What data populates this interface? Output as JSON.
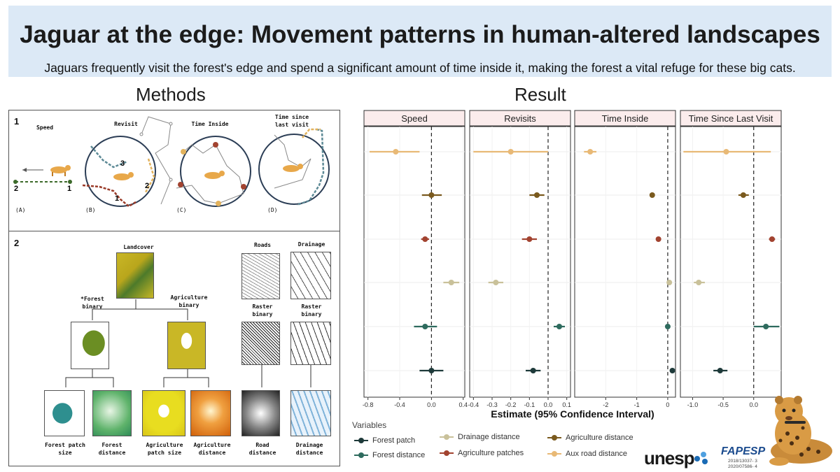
{
  "header": {
    "title": "Jaguar at the edge: Movement patterns in human-altered landscapes",
    "subtitle": "Jaguars frequently visit the forest's edge and spend a significant amount of time inside it, making the forest a vital refuge for these big cats."
  },
  "sections": {
    "methods": "Methods",
    "result": "Result"
  },
  "methods": {
    "panel1": {
      "number": "1",
      "speed": "Speed",
      "revisit": "Revisit",
      "time_inside": "Time Inside",
      "time_since_last_visit": "Time since last visit",
      "tag_a": "(A)",
      "tag_b": "(B)",
      "tag_c": "(C)",
      "tag_d": "(D)",
      "speed_end": "2",
      "speed_start": "1",
      "path_1": "1",
      "path_2": "2",
      "path_3": "3",
      "path_1b": "1"
    },
    "panel2": {
      "number": "2",
      "landcover": "Landcover",
      "roads": "Roads",
      "drainage": "Drainage",
      "forest_binary": "*Forest binary",
      "agriculture_binary": "Agriculture binary",
      "raster_binary_roads": "Raster binary",
      "raster_binary_drainage": "Raster binary",
      "forest_patch_size": "Forest patch size",
      "forest_distance": "Forest distance",
      "agriculture_patch_size": "Agriculture patch size",
      "agriculture_distance": "Agriculture distance",
      "road_distance": "Road distance",
      "drainage_distance": "Drainage distance"
    }
  },
  "chart_data": {
    "type": "scatter",
    "description_type": "forest plot (point estimates with 95% confidence intervals)",
    "xlabel": "Estimate (95% Confidence Interval)",
    "legend_title": "Variables",
    "legend_position": "bottom",
    "rows": [
      "Aux road distance",
      "Agriculture distance",
      "Agriculture patches",
      "Drainage distance",
      "Forest distance",
      "Forest patch"
    ],
    "series_colors": {
      "Forest patch": "#1e3a3a",
      "Forest distance": "#2e6b5e",
      "Drainage distance": "#c9c19a",
      "Agriculture patches": "#a24330",
      "Agriculture distance": "#7a5a1e",
      "Aux road distance": "#e8b976"
    },
    "panels": [
      {
        "title": "Speed",
        "xlim": [
          -0.85,
          0.42
        ],
        "ticks": [
          -0.8,
          -0.4,
          0.0,
          0.4
        ],
        "tick_labels": [
          "-0.8",
          "-0.4",
          "0.0",
          "0.4"
        ],
        "points": [
          {
            "var": "Aux road distance",
            "est": -0.45,
            "lo": -0.78,
            "hi": -0.15
          },
          {
            "var": "Agriculture distance",
            "est": 0.0,
            "lo": -0.12,
            "hi": 0.13
          },
          {
            "var": "Agriculture patches",
            "est": -0.08,
            "lo": -0.13,
            "hi": -0.03
          },
          {
            "var": "Drainage distance",
            "est": 0.25,
            "lo": 0.15,
            "hi": 0.35
          },
          {
            "var": "Forest distance",
            "est": -0.08,
            "lo": -0.22,
            "hi": 0.07
          },
          {
            "var": "Forest patch",
            "est": 0.0,
            "lo": -0.15,
            "hi": 0.15
          }
        ]
      },
      {
        "title": "Revisits",
        "xlim": [
          -0.42,
          0.12
        ],
        "ticks": [
          -0.4,
          -0.3,
          -0.2,
          -0.1,
          0.0,
          0.1
        ],
        "tick_labels": [
          "-0.4",
          "-0.3",
          "-0.2",
          "-0.1",
          "0.0",
          "0.1"
        ],
        "points": [
          {
            "var": "Aux road distance",
            "est": -0.2,
            "lo": -0.4,
            "hi": 0.0
          },
          {
            "var": "Agriculture distance",
            "est": -0.06,
            "lo": -0.1,
            "hi": -0.02
          },
          {
            "var": "Agriculture patches",
            "est": -0.1,
            "lo": -0.14,
            "hi": -0.06
          },
          {
            "var": "Drainage distance",
            "est": -0.28,
            "lo": -0.32,
            "hi": -0.24
          },
          {
            "var": "Forest distance",
            "est": 0.06,
            "lo": 0.03,
            "hi": 0.09
          },
          {
            "var": "Forest patch",
            "est": -0.08,
            "lo": -0.12,
            "hi": -0.04
          }
        ]
      },
      {
        "title": "Time Inside",
        "xlim": [
          -3.0,
          0.25
        ],
        "ticks": [
          -2,
          -1,
          0
        ],
        "tick_labels": [
          "-2",
          "-1",
          "0"
        ],
        "points": [
          {
            "var": "Aux road distance",
            "est": -2.5,
            "lo": -2.7,
            "hi": -2.3
          },
          {
            "var": "Agriculture distance",
            "est": -0.5,
            "lo": -0.52,
            "hi": -0.48
          },
          {
            "var": "Agriculture patches",
            "est": -0.3,
            "lo": -0.32,
            "hi": -0.28
          },
          {
            "var": "Drainage distance",
            "est": 0.05,
            "lo": 0.03,
            "hi": 0.07
          },
          {
            "var": "Forest distance",
            "est": 0.0,
            "lo": -0.02,
            "hi": 0.02
          },
          {
            "var": "Forest patch",
            "est": 0.15,
            "lo": 0.13,
            "hi": 0.17
          }
        ]
      },
      {
        "title": "Time Since Last Visit",
        "xlim": [
          -1.2,
          0.45
        ],
        "ticks": [
          -1.0,
          -0.5,
          0.0
        ],
        "tick_labels": [
          "-1.0",
          "-0.5",
          "0.0"
        ],
        "points": [
          {
            "var": "Aux road distance",
            "est": -0.45,
            "lo": -1.15,
            "hi": 0.28
          },
          {
            "var": "Agriculture distance",
            "est": -0.17,
            "lo": -0.25,
            "hi": -0.08
          },
          {
            "var": "Agriculture patches",
            "est": 0.3,
            "lo": 0.25,
            "hi": 0.35
          },
          {
            "var": "Drainage distance",
            "est": -0.9,
            "lo": -0.98,
            "hi": -0.8
          },
          {
            "var": "Forest distance",
            "est": 0.2,
            "lo": 0.0,
            "hi": 0.42
          },
          {
            "var": "Forest patch",
            "est": -0.55,
            "lo": -0.66,
            "hi": -0.43
          }
        ]
      }
    ]
  },
  "legend": {
    "title": "Variables",
    "items": [
      {
        "label": "Forest patch",
        "color": "#1e3a3a"
      },
      {
        "label": "Forest distance",
        "color": "#2e6b5e"
      },
      {
        "label": "Drainage distance",
        "color": "#c9c19a"
      },
      {
        "label": "Agriculture patches",
        "color": "#a24330"
      },
      {
        "label": "Agriculture distance",
        "color": "#7a5a1e"
      },
      {
        "label": "Aux road distance",
        "color": "#e8b976"
      }
    ]
  },
  "logos": {
    "unesp": "unesp",
    "fapesp": "FAPESP",
    "grant_1": "2018/13037- 3",
    "grant_2": "2020/07586- 4"
  }
}
